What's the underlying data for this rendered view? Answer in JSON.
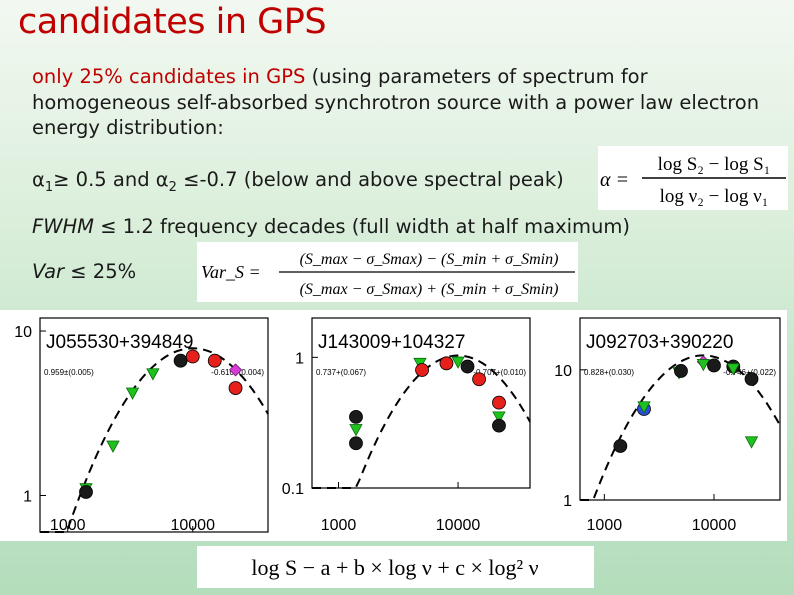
{
  "slide": {
    "title": "candidates in GPS",
    "intro_highlight": "only 25% candidates in GPS",
    "intro_rest": " (using parameters of spectrum for homogeneous self-absorbed synchrotron source with a power law electron energy distribution:",
    "alpha_line": {
      "a1": "α",
      "s1": "1",
      "mid": "≥ 0.5 and ",
      "a2": "α",
      "s2": "2",
      "end": " ≤-0.7 (below and above spectral peak)"
    },
    "fwhm_line": {
      "term": "FWHM",
      "rest": " ≤ 1.2 frequency decades (full width at half maximum)"
    },
    "var_line": {
      "term": "Var",
      "rest": " ≤ 25%"
    }
  },
  "formulas": {
    "alpha": {
      "lhs": "α =",
      "num": "log S₂ − log S₁",
      "den": "log ν₂ − log ν₁"
    },
    "vars": {
      "lhs": "Var_S =",
      "num": "(S_max − σ_Smax) − (S_min + σ_Smin)",
      "den": "(S_max − σ_Smax) + (S_min + σ_Smin)"
    },
    "bottom": "log S − a + b × log ν + c × log² ν"
  },
  "chart_data": [
    {
      "type": "scatter",
      "title": "J055530+394849",
      "scale": "log-log",
      "yticks": [
        "10",
        "1"
      ],
      "xticks": [
        "1000",
        "10000"
      ],
      "left_annotation": "0.959±(0.005)",
      "right_annotation": "-0.610+(0.004)",
      "colors": {
        "red": "#e8201b",
        "green": "#1ec21e",
        "black": "#1a1a1a",
        "magenta": "#d63cd6"
      },
      "points": [
        {
          "x": 1400,
          "y": 1.1,
          "c": "green"
        },
        {
          "x": 1400,
          "y": 1.05,
          "c": "black"
        },
        {
          "x": 2300,
          "y": 2.0,
          "c": "green"
        },
        {
          "x": 3300,
          "y": 4.2,
          "c": "green"
        },
        {
          "x": 4800,
          "y": 5.5,
          "c": "green"
        },
        {
          "x": 8000,
          "y": 6.6,
          "c": "black"
        },
        {
          "x": 10000,
          "y": 7.0,
          "c": "red"
        },
        {
          "x": 15000,
          "y": 6.6,
          "c": "red"
        },
        {
          "x": 22000,
          "y": 5.8,
          "c": "magenta"
        },
        {
          "x": 22000,
          "y": 4.5,
          "c": "red"
        }
      ]
    },
    {
      "type": "scatter",
      "title": "J143009+104327",
      "scale": "log-log",
      "yticks": [
        "1",
        "0.1"
      ],
      "xticks": [
        "1000",
        "10000"
      ],
      "left_annotation": "0.737+(0.067)",
      "right_annotation": "-0.707+(0.010)",
      "colors": {
        "red": "#e8201b",
        "green": "#1ec21e",
        "black": "#1a1a1a",
        "magenta": "#d63cd6"
      },
      "points": [
        {
          "x": 1400,
          "y": 0.35,
          "c": "black"
        },
        {
          "x": 1400,
          "y": 0.28,
          "c": "green"
        },
        {
          "x": 1400,
          "y": 0.22,
          "c": "black"
        },
        {
          "x": 4800,
          "y": 0.9,
          "c": "green"
        },
        {
          "x": 5000,
          "y": 0.8,
          "c": "red"
        },
        {
          "x": 8000,
          "y": 0.9,
          "c": "red"
        },
        {
          "x": 10000,
          "y": 0.92,
          "c": "green"
        },
        {
          "x": 12000,
          "y": 0.85,
          "c": "black"
        },
        {
          "x": 15000,
          "y": 0.68,
          "c": "red"
        },
        {
          "x": 22000,
          "y": 0.45,
          "c": "red"
        },
        {
          "x": 22000,
          "y": 0.35,
          "c": "green"
        },
        {
          "x": 22000,
          "y": 0.3,
          "c": "black"
        }
      ]
    },
    {
      "type": "scatter",
      "title": "J092703+390220",
      "scale": "log-log",
      "yticks": [
        "10",
        "1"
      ],
      "xticks": [
        "1000",
        "10000"
      ],
      "left_annotation": "0.828+(0.030)",
      "right_annotation": "-0.746+(0.022)",
      "colors": {
        "red": "#e8201b",
        "green": "#1ec21e",
        "black": "#1a1a1a",
        "magenta": "#d63cd6"
      },
      "points": [
        {
          "x": 1400,
          "y": 2.6,
          "c": "black"
        },
        {
          "x": 2300,
          "y": 5.0,
          "c": "blue"
        },
        {
          "x": 2300,
          "y": 5.2,
          "c": "green"
        },
        {
          "x": 4800,
          "y": 9.5,
          "c": "green"
        },
        {
          "x": 5000,
          "y": 9.8,
          "c": "black"
        },
        {
          "x": 8000,
          "y": 11.5,
          "c": "magenta"
        },
        {
          "x": 8000,
          "y": 11.0,
          "c": "green"
        },
        {
          "x": 10000,
          "y": 10.8,
          "c": "black"
        },
        {
          "x": 15000,
          "y": 10.6,
          "c": "black"
        },
        {
          "x": 15000,
          "y": 10.2,
          "c": "green"
        },
        {
          "x": 22000,
          "y": 8.5,
          "c": "black"
        },
        {
          "x": 22000,
          "y": 2.8,
          "c": "green"
        }
      ]
    }
  ]
}
